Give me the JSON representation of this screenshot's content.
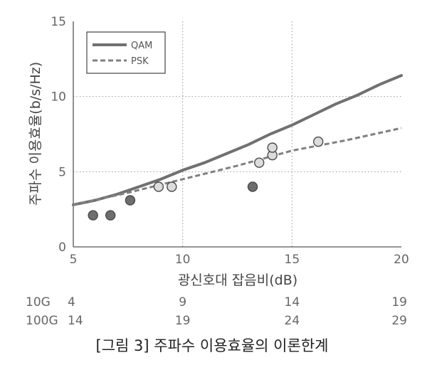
{
  "chart_data": {
    "type": "line",
    "xlabel": "광신호대 잡음비(dB)",
    "ylabel": "주파수 이용효율(b/s/Hz)",
    "xlim": [
      5,
      20
    ],
    "ylim": [
      0,
      15
    ],
    "x_ticks": [
      "5",
      "10",
      "15",
      "20"
    ],
    "y_ticks": [
      "0",
      "5",
      "10",
      "15"
    ],
    "grid": "dotted",
    "legend_position": "top-left",
    "series": [
      {
        "name": "QAM",
        "style": "solid",
        "color": "#707070",
        "x": [
          5,
          6,
          7,
          8,
          9,
          10,
          11,
          12,
          13,
          14,
          15,
          16,
          17,
          18,
          19,
          20
        ],
        "y": [
          2.8,
          3.1,
          3.5,
          4.0,
          4.5,
          5.1,
          5.6,
          6.2,
          6.8,
          7.5,
          8.1,
          8.8,
          9.5,
          10.1,
          10.8,
          11.4
        ]
      },
      {
        "name": "PSK",
        "style": "dashed",
        "color": "#808080",
        "x": [
          5,
          7.5,
          10,
          12.5,
          15,
          17.5,
          20
        ],
        "y": [
          2.8,
          3.6,
          4.5,
          5.4,
          6.4,
          7.1,
          7.9
        ]
      }
    ],
    "points": [
      {
        "x": 5.9,
        "y": 2.1,
        "fill": "filled"
      },
      {
        "x": 6.7,
        "y": 2.1,
        "fill": "filled"
      },
      {
        "x": 7.6,
        "y": 3.1,
        "fill": "filled"
      },
      {
        "x": 13.2,
        "y": 4.0,
        "fill": "filled"
      },
      {
        "x": 8.9,
        "y": 4.0,
        "fill": "open"
      },
      {
        "x": 9.5,
        "y": 4.0,
        "fill": "open"
      },
      {
        "x": 13.5,
        "y": 5.6,
        "fill": "open"
      },
      {
        "x": 14.1,
        "y": 6.1,
        "fill": "open"
      },
      {
        "x": 14.1,
        "y": 6.6,
        "fill": "open"
      },
      {
        "x": 16.2,
        "y": 7.0,
        "fill": "open"
      }
    ],
    "secondary_axes": [
      {
        "label": "10G",
        "positions": [
          5,
          10,
          15,
          20
        ],
        "ticks": [
          "4",
          "9",
          "14",
          "19"
        ]
      },
      {
        "label": "100G",
        "positions": [
          5,
          10,
          15,
          20
        ],
        "ticks": [
          "14",
          "19",
          "24",
          "29"
        ]
      }
    ]
  },
  "colors": {
    "line": "#707070",
    "filled_marker": "#6e6e6e",
    "open_marker": "#dcdcdc",
    "grid": "#999999"
  },
  "caption": "[그림 3] 주파수 이용효율의 이론한계"
}
